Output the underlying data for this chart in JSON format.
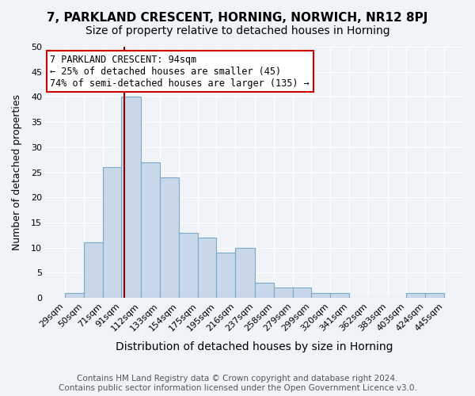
{
  "title1": "7, PARKLAND CRESCENT, HORNING, NORWICH, NR12 8PJ",
  "title2": "Size of property relative to detached houses in Horning",
  "xlabel": "Distribution of detached houses by size in Horning",
  "ylabel": "Number of detached properties",
  "bin_edges": [
    29,
    50,
    71,
    91,
    112,
    133,
    154,
    175,
    195,
    216,
    237,
    258,
    279,
    299,
    320,
    341,
    362,
    383,
    403,
    424,
    445
  ],
  "counts": [
    1,
    11,
    26,
    40,
    27,
    24,
    13,
    12,
    9,
    10,
    3,
    2,
    2,
    1,
    1,
    0,
    0,
    0,
    1,
    1
  ],
  "bar_color": "#c8d8e8",
  "bar_edge_color": "#7aaac8",
  "vline_x": 94,
  "vline_color": "#8b0000",
  "annotation_text": "7 PARKLAND CRESCENT: 94sqm\n← 25% of detached houses are smaller (45)\n74% of semi-detached houses are larger (135) →",
  "annotation_box_color": "#ffffff",
  "annotation_box_edge": "#cc0000",
  "ylim": [
    0,
    50
  ],
  "yticks": [
    0,
    5,
    10,
    15,
    20,
    25,
    30,
    35,
    40,
    45,
    50
  ],
  "footnote": "Contains HM Land Registry data © Crown copyright and database right 2024.\nContains public sector information licensed under the Open Government Licence v3.0.",
  "title1_fontsize": 11,
  "title2_fontsize": 10,
  "xlabel_fontsize": 10,
  "ylabel_fontsize": 9,
  "tick_fontsize": 8,
  "annotation_fontsize": 8.5,
  "footnote_fontsize": 7.5,
  "bg_color": "#f0f4f8"
}
